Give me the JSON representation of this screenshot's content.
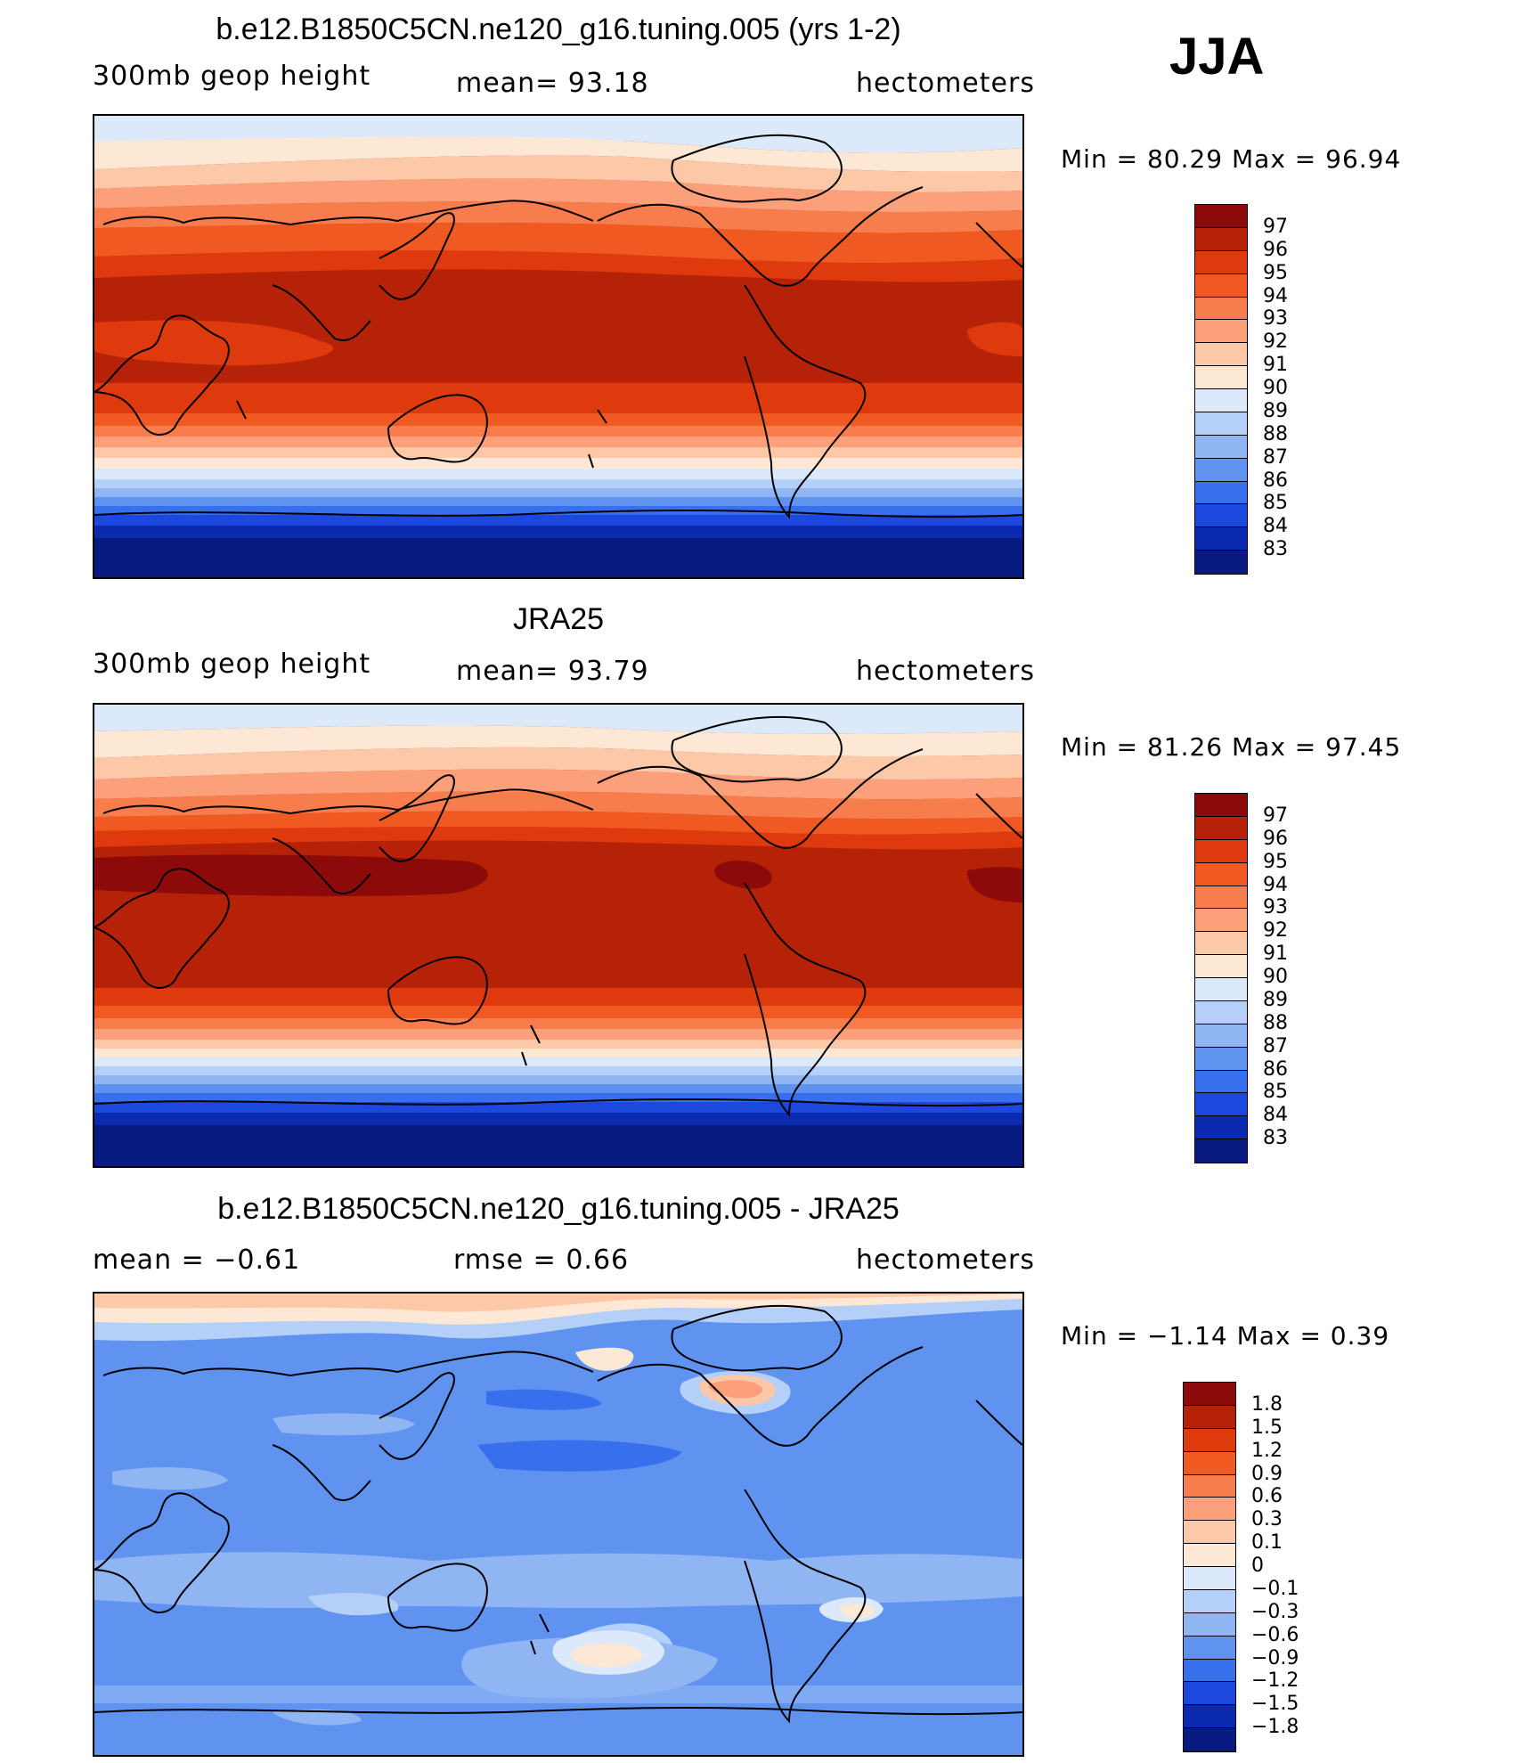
{
  "season": "JJA",
  "panels": [
    {
      "id": "model",
      "title": "b.e12.B1850C5CN.ne120_g16.tuning.005 (yrs 1-2)",
      "variable": "300mb  geop  height",
      "stat_text": "mean=   93.18",
      "units": "hectometers",
      "minmax_text": "Min  =    80.29  Max  =    96.94"
    },
    {
      "id": "obs",
      "title": "JRA25",
      "variable": "300mb  geop  height",
      "stat_text": "mean=   93.79",
      "units": "hectometers",
      "minmax_text": "Min  =    81.26  Max  =    97.45"
    },
    {
      "id": "diff",
      "title": "b.e12.B1850C5CN.ne120_g16.tuning.005 - JRA25",
      "variable": "mean  =    −0.61",
      "stat_text": "rmse  =     0.66",
      "units": "hectometers",
      "minmax_text": "Min  =    −1.14  Max  =      0.39"
    }
  ],
  "colorbars": {
    "absolute": {
      "labels": [
        "97",
        "96",
        "95",
        "94",
        "93",
        "92",
        "91",
        "90",
        "89",
        "88",
        "87",
        "86",
        "85",
        "84",
        "83"
      ],
      "colors": [
        "#8c0a0a",
        "#b52208",
        "#de3a0e",
        "#f05a22",
        "#f77d4d",
        "#fba07a",
        "#fcc8a8",
        "#fde8d6",
        "#dbe9fb",
        "#b5d0f8",
        "#8fb5f3",
        "#5f93ef",
        "#386fec",
        "#1c48dd",
        "#0b2ab0",
        "#061a80"
      ]
    },
    "difference": {
      "labels": [
        "1.8",
        "1.5",
        "1.2",
        "0.9",
        "0.6",
        "0.3",
        "0.1",
        "0",
        "−0.1",
        "−0.3",
        "−0.6",
        "−0.9",
        "−1.2",
        "−1.5",
        "−1.8"
      ],
      "colors": [
        "#8c0a0a",
        "#b52208",
        "#de3a0e",
        "#f05a22",
        "#f77d4d",
        "#fba07a",
        "#fcc8a8",
        "#fde8d6",
        "#dbe9fb",
        "#b5d0f8",
        "#8fb5f3",
        "#5f93ef",
        "#386fec",
        "#1c48dd",
        "#0b2ab0",
        "#061a80"
      ]
    }
  }
}
